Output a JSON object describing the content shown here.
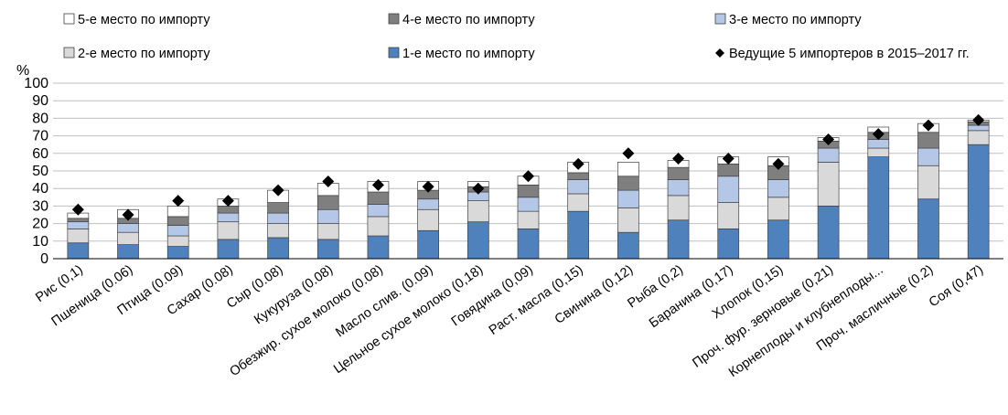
{
  "chart_data": {
    "type": "bar",
    "stacked": true,
    "ylabel": "%",
    "ylim": [
      0,
      100
    ],
    "yticks": [
      0,
      10,
      20,
      30,
      40,
      50,
      60,
      70,
      80,
      90,
      100
    ],
    "grid": true,
    "legend_position": "top",
    "categories": [
      "Рис (0,1)",
      "Пшеница (0.06)",
      "Птица (0.09)",
      "Сахар (0.08)",
      "Сыр (0.08)",
      "Кукуруза (0.08)",
      "Обезжир. сухое молоко (0.08)",
      "Масло слив. (0.09)",
      "Цельное сухое молоко (0,18)",
      "Говядина (0,09)",
      "Раст. масла (0,15)",
      "Свинина (0,12)",
      "Рыба (0,2)",
      "Баранина (0,17)",
      "Хлопок (0,15)",
      "Проч. фур. зерновые (0,21)",
      "Корнеплоды и клубнеплоды...",
      "Проч. масличные (0.2)",
      "Соя (0,47)"
    ],
    "series": [
      {
        "name": "1-е место по импорту",
        "color": "#4f81bd",
        "values": [
          9,
          8,
          7,
          11,
          12,
          11,
          13,
          16,
          21,
          17,
          27,
          15,
          22,
          17,
          22,
          30,
          58,
          34,
          65
        ]
      },
      {
        "name": "2-е место по импорту",
        "color": "#d9d9d9",
        "values": [
          8,
          7,
          6,
          10,
          8,
          9,
          11,
          12,
          12,
          10,
          10,
          14,
          14,
          15,
          13,
          25,
          5,
          19,
          8
        ]
      },
      {
        "name": "3-е место по импорту",
        "color": "#b4c7e7",
        "values": [
          4,
          5,
          6,
          5,
          6,
          8,
          7,
          6,
          5,
          8,
          8,
          10,
          9,
          15,
          10,
          8,
          5,
          10,
          3
        ]
      },
      {
        "name": "4-е место по импорту",
        "color": "#7f7f7f",
        "values": [
          2,
          3,
          5,
          4,
          6,
          8,
          7,
          5,
          3,
          7,
          4,
          8,
          7,
          7,
          8,
          4,
          4,
          9,
          2
        ]
      },
      {
        "name": "5-е место по импорту",
        "color": "#ffffff",
        "values": [
          3,
          5,
          6,
          4,
          7,
          7,
          6,
          5,
          3,
          5,
          6,
          8,
          4,
          4,
          5,
          2,
          3,
          5,
          1
        ]
      }
    ],
    "markers": {
      "name": "Ведущие 5 импортеров в 2015–2017 гг.",
      "values": [
        28,
        25,
        33,
        33,
        39,
        44,
        42,
        41,
        40,
        47,
        54,
        60,
        57,
        57,
        54,
        68,
        71,
        76,
        79
      ]
    },
    "legend_order": [
      "5-е место по импорту",
      "4-е место по импорту",
      "3-е место по импорту",
      "2-е место по импорту",
      "1-е место по импорту",
      "Ведущие 5 импортеров в 2015–2017 гг."
    ]
  }
}
